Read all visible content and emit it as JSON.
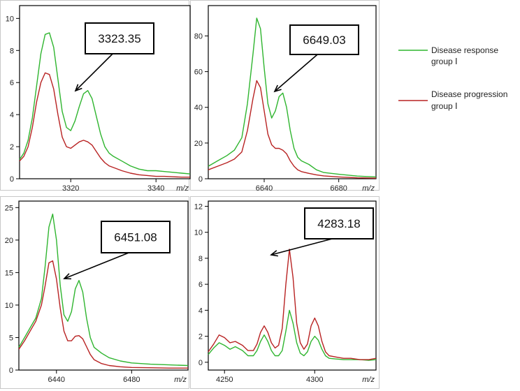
{
  "legend": [
    {
      "label_line1": "Disease response",
      "label_line2": "group Ⅰ",
      "color": "#2fb52f"
    },
    {
      "label_line1": "Disease progression",
      "label_line2": "group Ⅰ",
      "color": "#b82222"
    }
  ],
  "chart_data": [
    {
      "type": "line",
      "xlabel": "m/z",
      "xlim": [
        3308,
        3348
      ],
      "ylim": [
        0,
        10.8
      ],
      "xticks": [
        3320,
        3340
      ],
      "yticks": [
        0,
        2,
        4,
        6,
        8,
        10
      ],
      "peak_label": "3323.35",
      "series": [
        {
          "name": "Disease response group Ⅰ",
          "color": "#2fb52f",
          "x": [
            3308,
            3309,
            3310,
            3311,
            3312,
            3313,
            3314,
            3315,
            3316,
            3317,
            3318,
            3319,
            3320,
            3321,
            3322,
            3323,
            3324,
            3325,
            3326,
            3327,
            3328,
            3329,
            3330,
            3332,
            3334,
            3336,
            3338,
            3340,
            3342,
            3344,
            3346,
            3348
          ],
          "y": [
            1.2,
            1.6,
            2.4,
            3.8,
            5.8,
            7.8,
            9.0,
            9.1,
            8.2,
            6.2,
            4.2,
            3.2,
            3.0,
            3.6,
            4.5,
            5.3,
            5.5,
            5.0,
            3.9,
            2.8,
            2.0,
            1.6,
            1.4,
            1.1,
            0.8,
            0.6,
            0.5,
            0.5,
            0.45,
            0.4,
            0.35,
            0.3
          ]
        },
        {
          "name": "Disease progression group Ⅰ",
          "color": "#b82222",
          "x": [
            3308,
            3309,
            3310,
            3311,
            3312,
            3313,
            3314,
            3315,
            3316,
            3317,
            3318,
            3319,
            3320,
            3321,
            3322,
            3323,
            3324,
            3325,
            3326,
            3327,
            3328,
            3329,
            3330,
            3332,
            3334,
            3336,
            3338,
            3340,
            3342,
            3344,
            3346,
            3348
          ],
          "y": [
            1.1,
            1.4,
            2.0,
            3.2,
            4.8,
            6.0,
            6.6,
            6.5,
            5.6,
            4.0,
            2.6,
            2.0,
            1.9,
            2.1,
            2.3,
            2.4,
            2.3,
            2.1,
            1.7,
            1.3,
            1.0,
            0.8,
            0.7,
            0.5,
            0.35,
            0.25,
            0.2,
            0.15,
            0.15,
            0.12,
            0.1,
            0.1
          ]
        }
      ]
    },
    {
      "type": "line",
      "xlabel": "m/z",
      "xlim": [
        6610,
        6700
      ],
      "ylim": [
        0,
        97
      ],
      "xticks": [
        6640,
        6680
      ],
      "yticks": [
        0,
        20,
        40,
        60,
        80
      ],
      "peak_label": "6649.03",
      "series": [
        {
          "name": "Disease response group Ⅰ",
          "color": "#2fb52f",
          "x": [
            6610,
            6615,
            6620,
            6624,
            6628,
            6631,
            6634,
            6636,
            6638,
            6640,
            6642,
            6644,
            6646,
            6648,
            6650,
            6652,
            6654,
            6656,
            6658,
            6660,
            6664,
            6668,
            6672,
            6680,
            6690,
            6700
          ],
          "y": [
            7,
            10,
            13,
            16,
            23,
            42,
            70,
            90,
            84,
            62,
            42,
            34,
            38,
            46,
            48,
            40,
            27,
            17,
            12,
            10,
            8,
            5,
            3.5,
            2.5,
            1.5,
            1
          ]
        },
        {
          "name": "Disease progression group Ⅰ",
          "color": "#b82222",
          "x": [
            6610,
            6615,
            6620,
            6624,
            6628,
            6631,
            6634,
            6636,
            6638,
            6640,
            6642,
            6644,
            6646,
            6648,
            6650,
            6652,
            6654,
            6656,
            6658,
            6660,
            6664,
            6668,
            6672,
            6680,
            6690,
            6700
          ],
          "y": [
            5,
            7,
            9,
            11,
            15,
            27,
            45,
            55,
            51,
            38,
            25,
            19,
            17,
            17,
            16,
            14,
            10,
            7,
            5,
            4,
            3,
            2.2,
            1.6,
            1,
            0.5,
            0.3
          ]
        }
      ]
    },
    {
      "type": "line",
      "xlabel": "m/z",
      "xlim": [
        6420,
        6510
      ],
      "ylim": [
        0,
        26
      ],
      "xticks": [
        6440,
        6480
      ],
      "yticks": [
        0,
        5,
        10,
        15,
        20,
        25
      ],
      "peak_label": "6451.08",
      "series": [
        {
          "name": "Disease response group Ⅰ",
          "color": "#2fb52f",
          "x": [
            6420,
            6423,
            6426,
            6429,
            6432,
            6434,
            6436,
            6438,
            6440,
            6442,
            6444,
            6446,
            6448,
            6450,
            6452,
            6454,
            6456,
            6458,
            6460,
            6464,
            6468,
            6474,
            6480,
            6490,
            6500,
            6510
          ],
          "y": [
            3.5,
            5,
            6.5,
            8,
            11,
            16,
            22,
            24,
            20,
            13,
            8.5,
            7.5,
            9,
            12.5,
            13.8,
            12,
            8,
            5,
            3.5,
            2.6,
            1.9,
            1.4,
            1.1,
            0.9,
            0.8,
            0.7
          ]
        },
        {
          "name": "Disease progression group Ⅰ",
          "color": "#b82222",
          "x": [
            6420,
            6423,
            6426,
            6429,
            6432,
            6434,
            6436,
            6438,
            6440,
            6442,
            6444,
            6446,
            6448,
            6450,
            6452,
            6454,
            6456,
            6458,
            6460,
            6464,
            6468,
            6474,
            6480,
            6490,
            6500,
            6510
          ],
          "y": [
            3.2,
            4.5,
            6,
            7.5,
            10,
            13,
            16.5,
            16.8,
            14,
            9.5,
            6,
            4.5,
            4.5,
            5.2,
            5.3,
            4.8,
            3.6,
            2.4,
            1.6,
            1.0,
            0.7,
            0.5,
            0.4,
            0.35,
            0.3,
            0.3
          ]
        }
      ]
    },
    {
      "type": "line",
      "xlabel": "m/z",
      "xlim": [
        4241,
        4334
      ],
      "ylim": [
        -0.6,
        12.4
      ],
      "xticks": [
        4250,
        4300
      ],
      "yticks": [
        0,
        2,
        4,
        6,
        8,
        10,
        12
      ],
      "peak_label": "4283.18",
      "series": [
        {
          "name": "Disease response group Ⅰ",
          "color": "#2fb52f",
          "x": [
            4241,
            4244,
            4247,
            4250,
            4253,
            4256,
            4260,
            4263,
            4266,
            4268,
            4270,
            4272,
            4274,
            4276,
            4278,
            4280,
            4282,
            4284,
            4286,
            4288,
            4290,
            4292,
            4294,
            4296,
            4298,
            4300,
            4302,
            4304,
            4306,
            4308,
            4312,
            4316,
            4320,
            4325,
            4330,
            4334
          ],
          "y": [
            0.6,
            1.1,
            1.5,
            1.3,
            1.0,
            1.2,
            0.9,
            0.5,
            0.5,
            0.9,
            1.6,
            2.1,
            1.6,
            0.9,
            0.5,
            0.5,
            0.9,
            2.4,
            4.0,
            3.0,
            1.5,
            0.7,
            0.5,
            0.8,
            1.6,
            2.0,
            1.7,
            1.0,
            0.5,
            0.3,
            0.25,
            0.2,
            0.2,
            0.2,
            0.15,
            0.2
          ]
        },
        {
          "name": "Disease progression group Ⅰ",
          "color": "#b82222",
          "x": [
            4241,
            4244,
            4247,
            4250,
            4253,
            4256,
            4260,
            4263,
            4266,
            4268,
            4270,
            4272,
            4274,
            4276,
            4278,
            4280,
            4282,
            4284,
            4286,
            4288,
            4290,
            4292,
            4294,
            4296,
            4298,
            4300,
            4302,
            4304,
            4306,
            4308,
            4312,
            4316,
            4320,
            4325,
            4330,
            4334
          ],
          "y": [
            0.8,
            1.4,
            2.1,
            1.9,
            1.5,
            1.6,
            1.3,
            0.9,
            0.9,
            1.4,
            2.3,
            2.8,
            2.3,
            1.5,
            1.1,
            1.3,
            2.6,
            6.0,
            8.7,
            6.5,
            3.0,
            1.5,
            1.0,
            1.4,
            2.8,
            3.4,
            2.8,
            1.6,
            0.8,
            0.5,
            0.4,
            0.3,
            0.3,
            0.2,
            0.2,
            0.3
          ]
        }
      ]
    }
  ]
}
